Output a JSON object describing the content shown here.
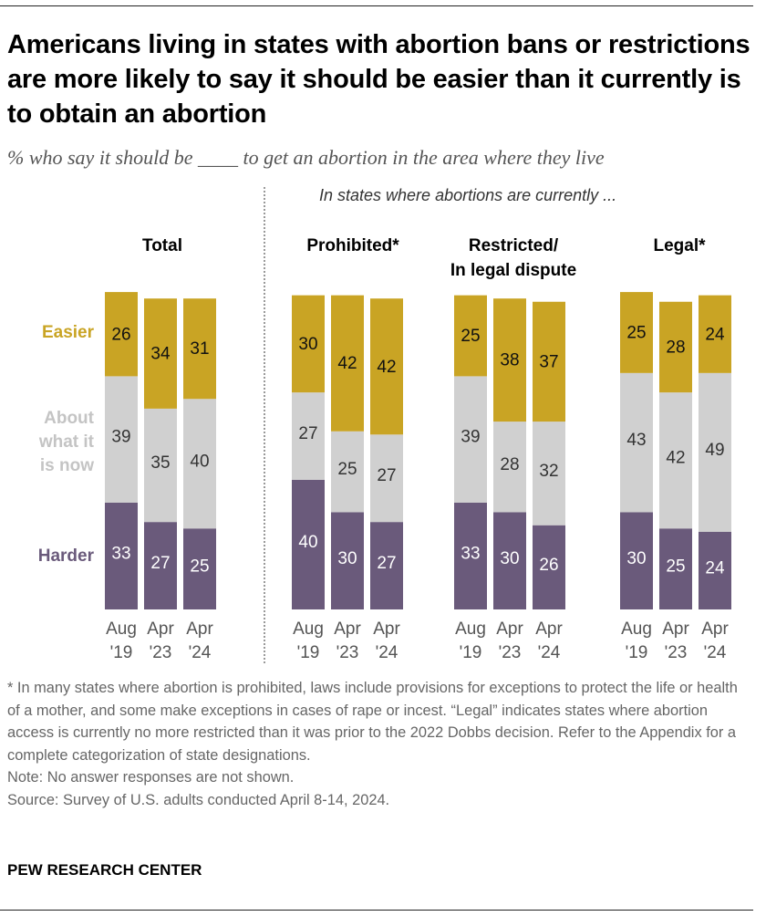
{
  "title": "Americans living in states with abortion bans or restrictions are more likely to say it should be easier than it currently is to obtain an abortion",
  "subtitle": "% who say it should be ____ to get an abortion in the area where they live",
  "panel_note": "In states where abortions are currently ...",
  "colors": {
    "easier": "#c9a424",
    "about": "#d0d0d0",
    "harder": "#6a5a7b",
    "easier_label": "#c9a424",
    "about_label": "#c4c4c4",
    "harder_label": "#6a5a7b"
  },
  "row_labels": {
    "easier": "Easier",
    "about": "About what it is now",
    "harder": "Harder"
  },
  "chart_data": {
    "type": "bar",
    "stacked": true,
    "title": "Americans living in states with abortion bans or restrictions are more likely to say it should be easier than it currently is to obtain an abortion",
    "segments": [
      "Harder",
      "About what it is now",
      "Easier"
    ],
    "groups": [
      {
        "name": "Total",
        "categories": [
          "Aug '19",
          "Apr '23",
          "Apr '24"
        ],
        "harder": [
          33,
          27,
          25
        ],
        "about": [
          39,
          35,
          40
        ],
        "easier": [
          26,
          34,
          31
        ]
      },
      {
        "name": "Prohibited*",
        "categories": [
          "Aug '19",
          "Apr '23",
          "Apr '24"
        ],
        "harder": [
          40,
          30,
          27
        ],
        "about": [
          27,
          25,
          27
        ],
        "easier": [
          30,
          42,
          42
        ]
      },
      {
        "name": "Restricted/ In legal dispute",
        "categories": [
          "Aug '19",
          "Apr '23",
          "Apr '24"
        ],
        "harder": [
          33,
          30,
          26
        ],
        "about": [
          39,
          28,
          32
        ],
        "easier": [
          25,
          38,
          37
        ]
      },
      {
        "name": "Legal*",
        "categories": [
          "Aug '19",
          "Apr '23",
          "Apr '24"
        ],
        "harder": [
          30,
          25,
          24
        ],
        "about": [
          43,
          42,
          49
        ],
        "easier": [
          25,
          28,
          24
        ]
      }
    ],
    "x_tick_labels": [
      [
        "Aug",
        "'19"
      ],
      [
        "Apr",
        "'23"
      ],
      [
        "Apr",
        "'24"
      ]
    ],
    "ylim": [
      0,
      100
    ]
  },
  "footnotes": [
    "* In many states where abortion is prohibited, laws include provisions for exceptions to protect the life or health of a mother, and some make exceptions in cases of rape or incest. “Legal” indicates states where abortion access is currently no more restricted than it was prior to the 2022 Dobbs decision. Refer to the Appendix for a complete categorization of state designations.",
    "Note: No answer responses are not shown.",
    "Source: Survey of U.S. adults conducted April 8-14, 2024."
  ],
  "brand": "PEW RESEARCH CENTER"
}
